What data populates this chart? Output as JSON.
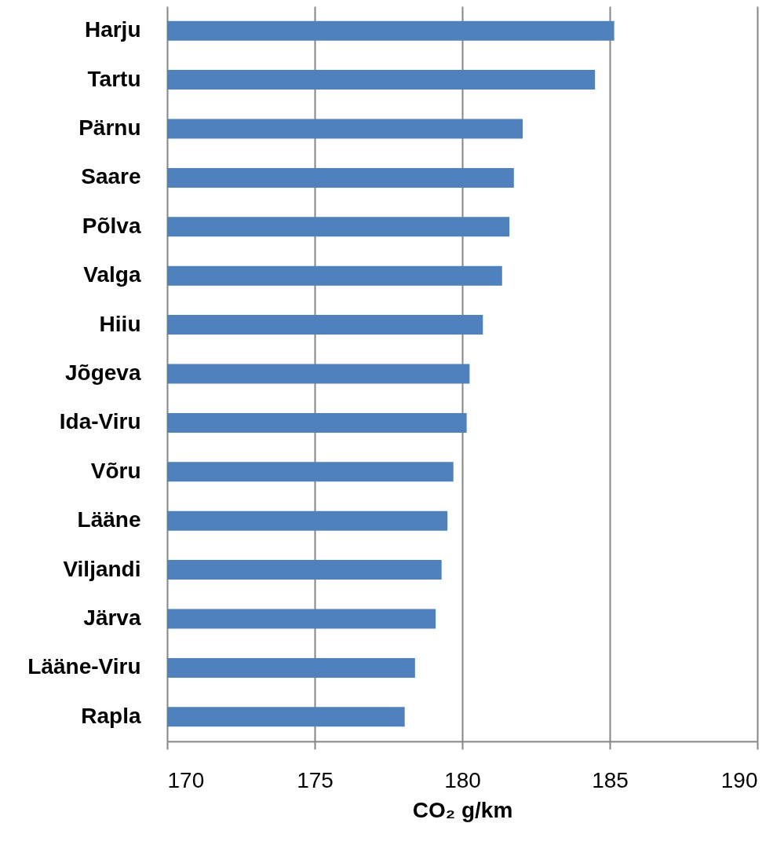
{
  "chart_data": {
    "type": "bar",
    "orientation": "horizontal",
    "categories": [
      "Harju",
      "Tartu",
      "Pärnu",
      "Saare",
      "Põlva",
      "Valga",
      "Hiiu",
      "Jõgeva",
      "Ida-Viru",
      "Võru",
      "Lääne",
      "Viljandi",
      "Järva",
      "Lääne-Viru",
      "Rapla"
    ],
    "values": [
      185.15,
      184.5,
      182.05,
      181.75,
      181.6,
      181.35,
      180.7,
      180.25,
      180.15,
      179.7,
      179.5,
      179.3,
      179.1,
      178.4,
      178.05
    ],
    "color": "#4f81bd",
    "xlabel": "CO₂ g/km",
    "xlim": [
      170,
      190
    ],
    "xticks": [
      170,
      175,
      180,
      185,
      190
    ],
    "grid": "x"
  }
}
